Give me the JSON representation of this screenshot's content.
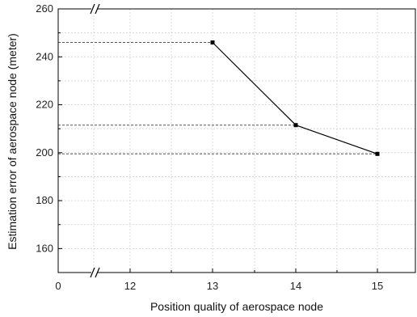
{
  "chart_data": {
    "type": "line",
    "xlabel": "Position quality of aerospace node",
    "ylabel": "Estimation error of aerospace node (meter)",
    "ylim": [
      150,
      260
    ],
    "yticks": [
      160,
      180,
      200,
      220,
      240,
      260
    ],
    "x_axis": {
      "tick_labels": [
        "0",
        "12",
        "13",
        "14",
        "15"
      ],
      "axis_break": "between 0 and 12"
    },
    "grid": true,
    "series": [
      {
        "marker": "square",
        "color": "#000000",
        "x": [
          13,
          14,
          15
        ],
        "y": [
          246,
          211.5,
          199.5
        ]
      }
    ],
    "reference_lines": [
      {
        "style": "dashed",
        "y": 246
      },
      {
        "style": "dashed",
        "y": 211.5
      },
      {
        "style": "dashed",
        "y": 199.5
      }
    ]
  }
}
